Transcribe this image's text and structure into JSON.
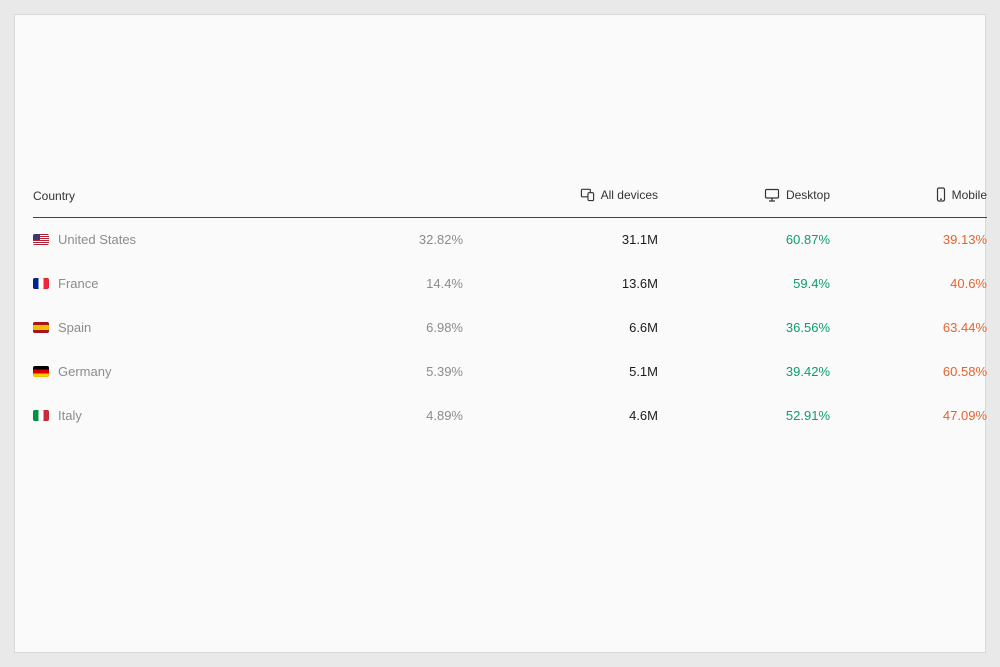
{
  "table": {
    "columns": {
      "country": "Country",
      "share": "",
      "all_devices": "All devices",
      "desktop": "Desktop",
      "mobile": "Mobile"
    },
    "rows": [
      {
        "code": "us",
        "country": "United States",
        "share": "32.82%",
        "all_devices": "31.1M",
        "desktop": "60.87%",
        "mobile": "39.13%"
      },
      {
        "code": "fr",
        "country": "France",
        "share": "14.4%",
        "all_devices": "13.6M",
        "desktop": "59.4%",
        "mobile": "40.6%"
      },
      {
        "code": "es",
        "country": "Spain",
        "share": "6.98%",
        "all_devices": "6.6M",
        "desktop": "36.56%",
        "mobile": "63.44%"
      },
      {
        "code": "de",
        "country": "Germany",
        "share": "5.39%",
        "all_devices": "5.1M",
        "desktop": "39.42%",
        "mobile": "60.58%"
      },
      {
        "code": "it",
        "country": "Italy",
        "share": "4.89%",
        "all_devices": "4.6M",
        "desktop": "52.91%",
        "mobile": "47.09%"
      }
    ]
  },
  "colors": {
    "desktop_green": "#0b9e6a",
    "mobile_orange": "#e8622d"
  }
}
